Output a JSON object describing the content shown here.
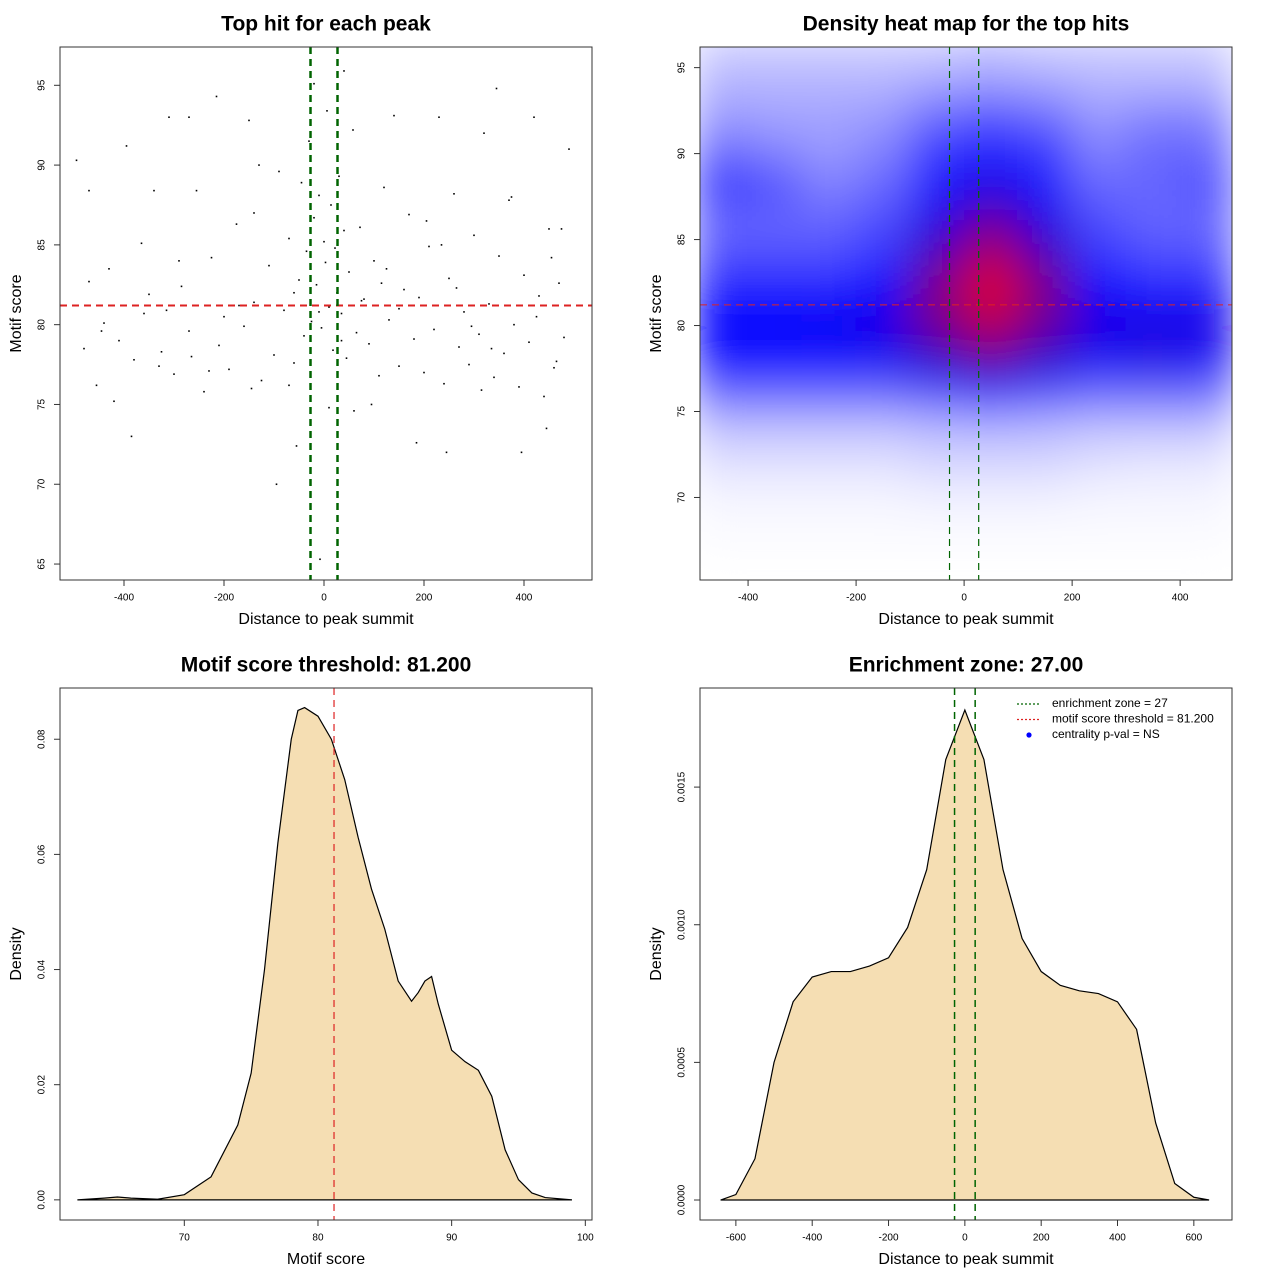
{
  "chart_data": [
    {
      "type": "scatter",
      "title": "Top hit for each peak",
      "x_label": "Distance to peak summit",
      "y_label": "Motif score",
      "color": "#000000",
      "x": [
        -480,
        -470,
        -455,
        -440,
        -430,
        -410,
        -395,
        -380,
        -365,
        -350,
        -340,
        -325,
        -310,
        -300,
        -285,
        -270,
        -255,
        -240,
        -225,
        -210,
        -200,
        -190,
        -175,
        -160,
        -150,
        -140,
        -125,
        -110,
        -100,
        -90,
        -80,
        -70,
        -60,
        -50,
        -45,
        -40,
        -35,
        -30,
        -25,
        -20,
        -15,
        -10,
        -5,
        0,
        3,
        6,
        10,
        14,
        18,
        22,
        26,
        30,
        35,
        40,
        45,
        50,
        58,
        65,
        72,
        80,
        90,
        100,
        110,
        120,
        130,
        140,
        150,
        160,
        170,
        180,
        190,
        200,
        210,
        220,
        230,
        240,
        250,
        260,
        270,
        280,
        290,
        300,
        310,
        320,
        330,
        340,
        350,
        360,
        370,
        380,
        390,
        400,
        410,
        420,
        430,
        440,
        450,
        460,
        470,
        480,
        -470,
        -420,
        -360,
        -290,
        -230,
        -170,
        -130,
        -70,
        -20,
        10,
        40,
        95,
        150,
        205,
        265,
        315,
        375,
        425,
        465,
        490,
        -495,
        -445,
        -385,
        -315,
        -265,
        -215,
        -145,
        -95,
        -55,
        -8,
        60,
        125,
        185,
        245,
        295,
        345,
        395,
        445,
        475,
        -330,
        -270,
        -140,
        -60,
        -10,
        35,
        75,
        115,
        235,
        335,
        455
      ],
      "values": [
        78.5,
        88.4,
        76.2,
        80.1,
        83.5,
        79.0,
        91.2,
        77.8,
        85.1,
        81.9,
        88.4,
        78.3,
        93.0,
        76.9,
        82.4,
        79.6,
        88.4,
        75.8,
        84.2,
        78.7,
        80.5,
        77.2,
        86.3,
        79.9,
        92.8,
        81.4,
        76.5,
        83.7,
        78.1,
        89.6,
        80.9,
        85.4,
        77.6,
        82.8,
        88.9,
        79.3,
        84.6,
        91.5,
        80.2,
        86.7,
        82.5,
        88.1,
        79.8,
        85.2,
        83.9,
        93.4,
        81.1,
        87.5,
        78.4,
        84.8,
        82.0,
        89.3,
        80.7,
        85.9,
        77.9,
        83.3,
        92.2,
        79.5,
        86.1,
        81.6,
        78.8,
        84.0,
        76.8,
        88.6,
        80.3,
        93.1,
        77.4,
        82.2,
        86.9,
        79.1,
        81.7,
        77.0,
        84.9,
        79.7,
        93.0,
        76.3,
        82.9,
        88.2,
        78.6,
        80.8,
        77.5,
        85.6,
        79.4,
        92.0,
        81.3,
        76.7,
        84.3,
        78.2,
        87.8,
        80.0,
        76.1,
        83.1,
        78.9,
        93.0,
        81.8,
        75.5,
        86.0,
        77.3,
        82.6,
        79.2,
        82.7,
        75.2,
        80.7,
        84.0,
        77.1,
        81.2,
        90.0,
        76.2,
        95.1,
        74.8,
        95.9,
        75.0,
        81.0,
        86.5,
        82.3,
        75.9,
        88.0,
        80.5,
        77.7,
        91.0,
        90.3,
        79.6,
        73.0,
        80.9,
        78.0,
        94.3,
        76.0,
        70.0,
        72.4,
        65.3,
        74.6,
        83.5,
        72.6,
        72.0,
        79.9,
        94.8,
        72.0,
        73.5,
        86.0,
        77.4,
        93.0,
        87.0,
        82.0,
        80.8,
        79.0,
        81.5,
        82.6,
        85.0,
        78.5,
        84.2
      ],
      "xlim": [
        -528,
        536
      ],
      "ylim": [
        64.0,
        97.4
      ],
      "xticks": [
        -400,
        -200,
        0,
        200,
        400
      ],
      "yticks": [
        65,
        70,
        75,
        80,
        85,
        90,
        95
      ],
      "reference_lines": [
        {
          "axis": "y",
          "value": 81.2,
          "color": "#dd2222",
          "width": 2
        },
        {
          "axis": "x",
          "value": -27,
          "color": "#006400",
          "width": 2.5
        },
        {
          "axis": "x",
          "value": 27,
          "color": "#006400",
          "width": 2.5
        }
      ]
    },
    {
      "type": "heatmap",
      "title": "Density heat map for the top hits",
      "x_label": "Distance to peak summit",
      "y_label": "Motif score",
      "colors": [
        "#ffffff",
        "#0000ff",
        "#ff0000"
      ],
      "x": [
        -450,
        -350,
        -250,
        -150,
        -50,
        50,
        150,
        250,
        350,
        450
      ],
      "y": [
        96,
        94,
        92,
        90,
        88,
        86,
        84,
        82,
        80,
        78,
        76,
        74,
        72,
        70,
        68,
        66
      ],
      "z": [
        [
          0.1,
          0.1,
          0.1,
          0.1,
          0.1,
          0.12,
          0.1,
          0.1,
          0.1,
          0.1
        ],
        [
          0.15,
          0.15,
          0.15,
          0.15,
          0.18,
          0.2,
          0.18,
          0.15,
          0.15,
          0.15
        ],
        [
          0.2,
          0.18,
          0.18,
          0.2,
          0.3,
          0.35,
          0.3,
          0.2,
          0.25,
          0.25
        ],
        [
          0.3,
          0.25,
          0.2,
          0.25,
          0.4,
          0.45,
          0.4,
          0.25,
          0.3,
          0.3
        ],
        [
          0.4,
          0.35,
          0.25,
          0.3,
          0.45,
          0.55,
          0.45,
          0.3,
          0.3,
          0.35
        ],
        [
          0.3,
          0.3,
          0.3,
          0.35,
          0.55,
          0.7,
          0.55,
          0.35,
          0.3,
          0.3
        ],
        [
          0.35,
          0.35,
          0.35,
          0.4,
          0.65,
          0.85,
          0.65,
          0.4,
          0.35,
          0.35
        ],
        [
          0.45,
          0.45,
          0.45,
          0.5,
          0.75,
          0.95,
          0.75,
          0.5,
          0.45,
          0.45
        ],
        [
          0.5,
          0.5,
          0.52,
          0.55,
          0.72,
          0.85,
          0.7,
          0.55,
          0.55,
          0.55
        ],
        [
          0.5,
          0.5,
          0.5,
          0.52,
          0.6,
          0.7,
          0.6,
          0.52,
          0.55,
          0.52
        ],
        [
          0.3,
          0.3,
          0.3,
          0.3,
          0.35,
          0.4,
          0.35,
          0.3,
          0.3,
          0.3
        ],
        [
          0.12,
          0.12,
          0.12,
          0.12,
          0.14,
          0.15,
          0.14,
          0.12,
          0.12,
          0.12
        ],
        [
          0.06,
          0.06,
          0.06,
          0.06,
          0.08,
          0.08,
          0.08,
          0.06,
          0.05,
          0.05
        ],
        [
          0.02,
          0.02,
          0.02,
          0.02,
          0.03,
          0.03,
          0.03,
          0.02,
          0.02,
          0.02
        ],
        [
          0.01,
          0.01,
          0.01,
          0.01,
          0.01,
          0.01,
          0.01,
          0.01,
          0.01,
          0.01
        ],
        [
          0,
          0,
          0,
          0,
          0,
          0,
          0,
          0,
          0,
          0
        ]
      ],
      "xlim": [
        -489,
        496
      ],
      "ylim": [
        65.2,
        96.2
      ],
      "xticks": [
        -400,
        -200,
        0,
        200,
        400
      ],
      "yticks": [
        70,
        75,
        80,
        85,
        90,
        95
      ],
      "reference_lines": [
        {
          "axis": "y",
          "value": 81.2,
          "color": "#dd2222",
          "width": 1
        },
        {
          "axis": "x",
          "value": -27,
          "color": "#006400",
          "width": 1.2
        },
        {
          "axis": "x",
          "value": 27,
          "color": "#006400",
          "width": 1.2
        }
      ]
    },
    {
      "type": "density",
      "title": "Motif score threshold: 81.200",
      "x_label": "Motif score",
      "y_label": "Density",
      "color": "#f5deb3",
      "x": [
        62,
        64,
        65,
        66,
        68,
        70,
        72,
        74,
        75,
        76,
        77,
        78,
        78.5,
        79,
        80,
        81,
        82,
        83,
        84,
        85,
        86,
        87,
        87.5,
        88,
        88.5,
        89,
        90,
        91,
        92,
        93,
        94,
        95,
        96,
        97,
        99
      ],
      "values": [
        0,
        0.0003,
        0.0005,
        0.0003,
        0.0001,
        0.0009,
        0.004,
        0.013,
        0.022,
        0.04,
        0.062,
        0.08,
        0.085,
        0.0855,
        0.084,
        0.08,
        0.073,
        0.063,
        0.054,
        0.047,
        0.038,
        0.0345,
        0.036,
        0.038,
        0.0388,
        0.034,
        0.026,
        0.024,
        0.0225,
        0.018,
        0.0087,
        0.0035,
        0.0012,
        0.0004,
        0
      ],
      "xlim": [
        60.7,
        100.5
      ],
      "ylim": [
        -0.0035,
        0.0889
      ],
      "xticks": [
        70,
        80,
        90,
        100
      ],
      "yticks": [
        {
          "value": 0,
          "label": "0.00"
        },
        {
          "value": 0.02,
          "label": "0.02"
        },
        {
          "value": 0.04,
          "label": "0.04"
        },
        {
          "value": 0.06,
          "label": "0.06"
        },
        {
          "value": 0.08,
          "label": "0.08"
        }
      ],
      "reference_lines": [
        {
          "axis": "x",
          "value": 81.2,
          "color": "#dd2222",
          "width": 1.2
        }
      ]
    },
    {
      "type": "density",
      "title": "Enrichment zone: 27.00",
      "x_label": "Distance to peak summit",
      "y_label": "Density",
      "color": "#f5deb3",
      "x": [
        -640,
        -600,
        -550,
        -500,
        -450,
        -400,
        -350,
        -300,
        -250,
        -200,
        -150,
        -100,
        -50,
        0,
        50,
        100,
        150,
        200,
        250,
        300,
        350,
        400,
        450,
        500,
        550,
        600,
        640
      ],
      "values": [
        0,
        2e-05,
        0.00015,
        0.0005,
        0.00072,
        0.00081,
        0.00083,
        0.00083,
        0.00085,
        0.00088,
        0.00099,
        0.0012,
        0.0016,
        0.00178,
        0.0016,
        0.0012,
        0.00095,
        0.00083,
        0.00078,
        0.00076,
        0.00075,
        0.00072,
        0.00062,
        0.00028,
        6e-05,
        1e-05,
        0
      ],
      "xlim": [
        -694,
        700
      ],
      "ylim": [
        -7.26e-05,
        0.00186
      ],
      "xticks": [
        -600,
        -400,
        -200,
        0,
        200,
        400,
        600
      ],
      "yticks": [
        {
          "value": 0,
          "label": "0.0000"
        },
        {
          "value": 0.0005,
          "label": "0.0005"
        },
        {
          "value": 0.001,
          "label": "0.0010"
        },
        {
          "value": 0.0015,
          "label": "0.0015"
        }
      ],
      "reference_lines": [
        {
          "axis": "x",
          "value": -27,
          "color": "#006400",
          "width": 1.5
        },
        {
          "axis": "x",
          "value": 27,
          "color": "#006400",
          "width": 1.5
        }
      ],
      "legend": {
        "position": "top-right",
        "entries": [
          {
            "label": "enrichment zone = 27",
            "color": "#006400",
            "marker": "line"
          },
          {
            "label": "motif score threshold = 81.200",
            "color": "#dd2222",
            "marker": "line"
          },
          {
            "label": "centrality p-val = NS",
            "color": "#0000ff",
            "marker": "dot"
          }
        ]
      }
    }
  ]
}
